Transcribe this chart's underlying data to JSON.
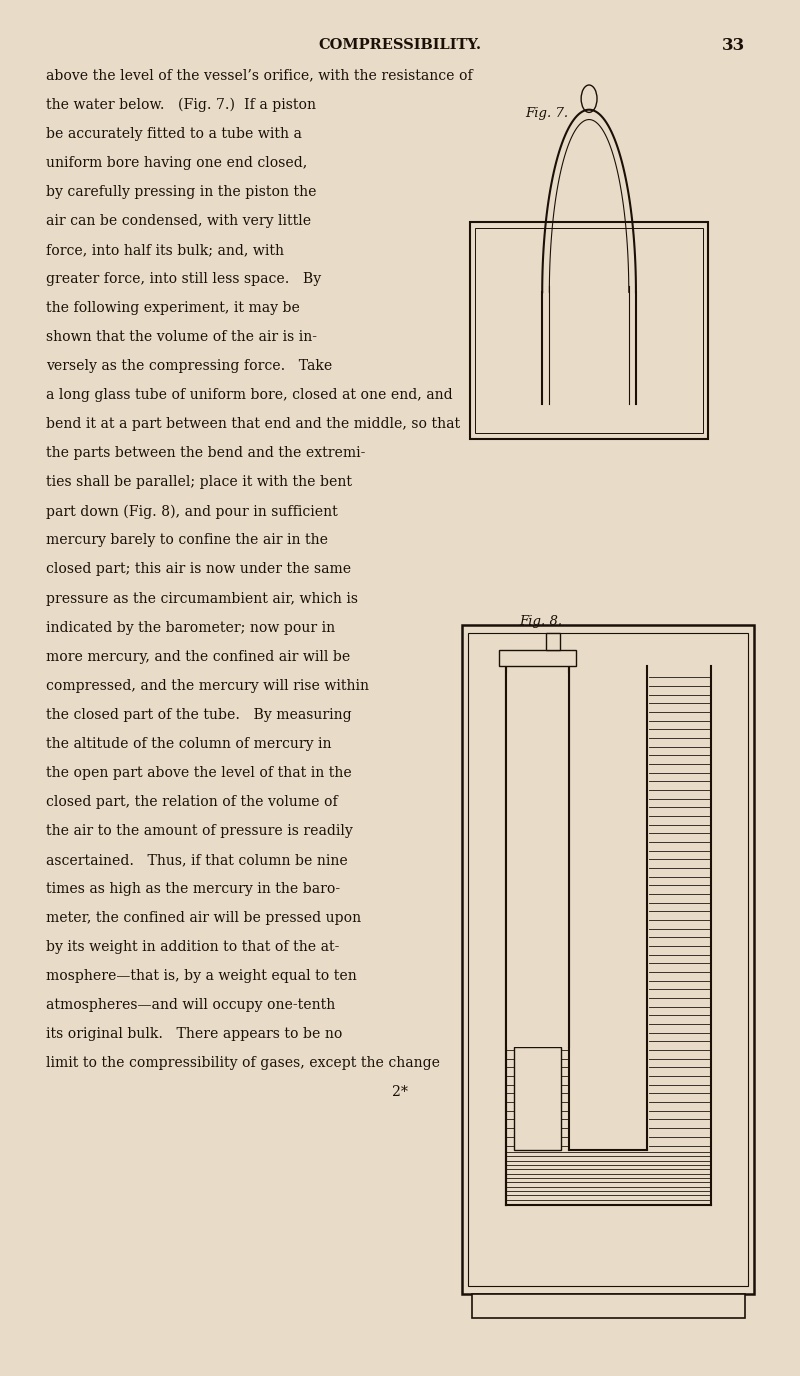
{
  "bg_color": "#e8dcc8",
  "text_color": "#1a1008",
  "page_width": 8.0,
  "page_height": 13.76,
  "header_text": "COMPRESSIBILITY.",
  "page_number": "33",
  "fig7_label": "Fig. 7.",
  "fig8_label": "Fig. 8.",
  "footer_text": "2*",
  "text_lines": [
    "above the level of the vessel’s orifice, with the resistance of",
    "the water below.   (Fig. 7.)  If a piston",
    "be accurately fitted to a tube with a",
    "uniform bore having one end closed,",
    "by carefully pressing in the piston the",
    "air can be condensed, with very little",
    "force, into half its bulk; and, with",
    "greater force, into still less space.   By",
    "the following experiment, it may be",
    "shown that the volume of the air is in-",
    "versely as the compressing force.   Take",
    "a long glass tube of uniform bore, closed at one end, and",
    "bend it at a part between that end and the middle, so that",
    "the parts between the bend and the extremi-",
    "ties shall be parallel; place it with the bent",
    "part down (Fig. 8), and pour in sufficient",
    "mercury barely to confine the air in the",
    "closed part; this air is now under the same",
    "pressure as the circumambient air, which is",
    "indicated by the barometer; now pour in",
    "more mercury, and the confined air will be",
    "compressed, and the mercury will rise within",
    "the closed part of the tube.   By measuring",
    "the altitude of the column of mercury in",
    "the open part above the level of that in the",
    "closed part, the relation of the volume of",
    "the air to the amount of pressure is readily",
    "ascertained.   Thus, if that column be nine",
    "times as high as the mercury in the baro-",
    "meter, the confined air will be pressed upon",
    "by its weight in addition to that of the at-",
    "mosphere—that is, by a weight equal to ten",
    "atmospheres—and will occupy one-tenth",
    "its original bulk.   There appears to be no",
    "limit to the compressibility of gases, except the change"
  ]
}
